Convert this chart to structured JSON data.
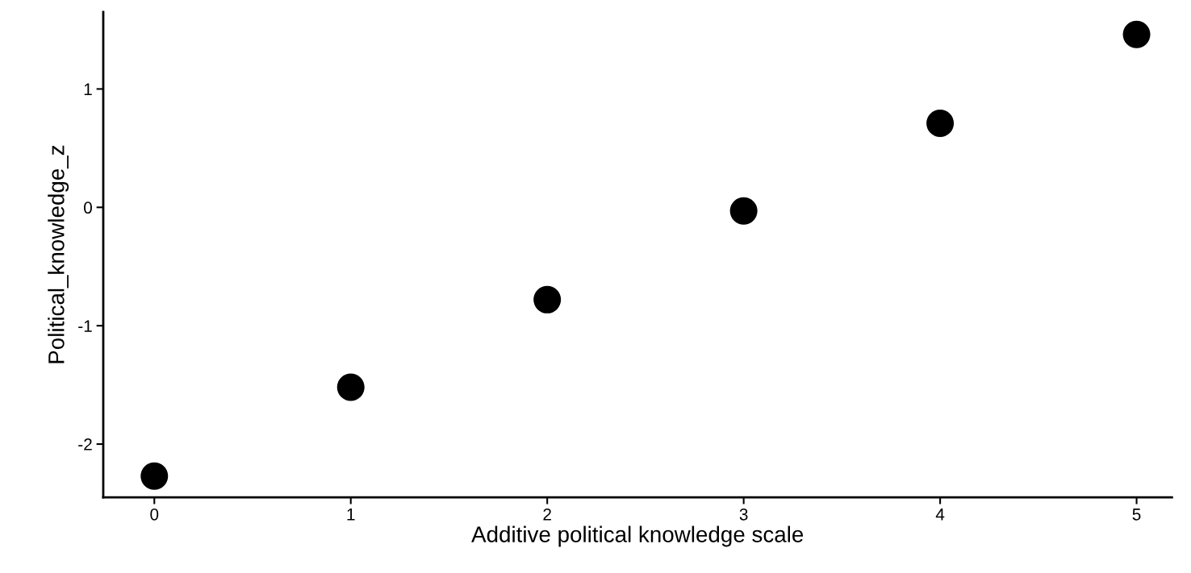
{
  "chart_data": {
    "type": "scatter",
    "xlabel": "Additive political knowledge scale",
    "ylabel": "Political_knowledge_z",
    "x": [
      0,
      1,
      2,
      3,
      4,
      5
    ],
    "series": [
      {
        "color": "#000000",
        "values": [
          -2.27,
          -1.52,
          -0.78,
          -0.03,
          0.71,
          1.46
        ]
      }
    ],
    "xlim": [
      -0.26,
      5.18
    ],
    "xticks": [
      0,
      1,
      2,
      3,
      4,
      5
    ],
    "ylim": [
      -2.45,
      1.65
    ],
    "yticks": [
      {
        "value": -2,
        "label": "-2"
      },
      {
        "value": -1,
        "label": "-1"
      },
      0,
      1
    ],
    "marker": "circle",
    "grid": false,
    "legend": false
  }
}
